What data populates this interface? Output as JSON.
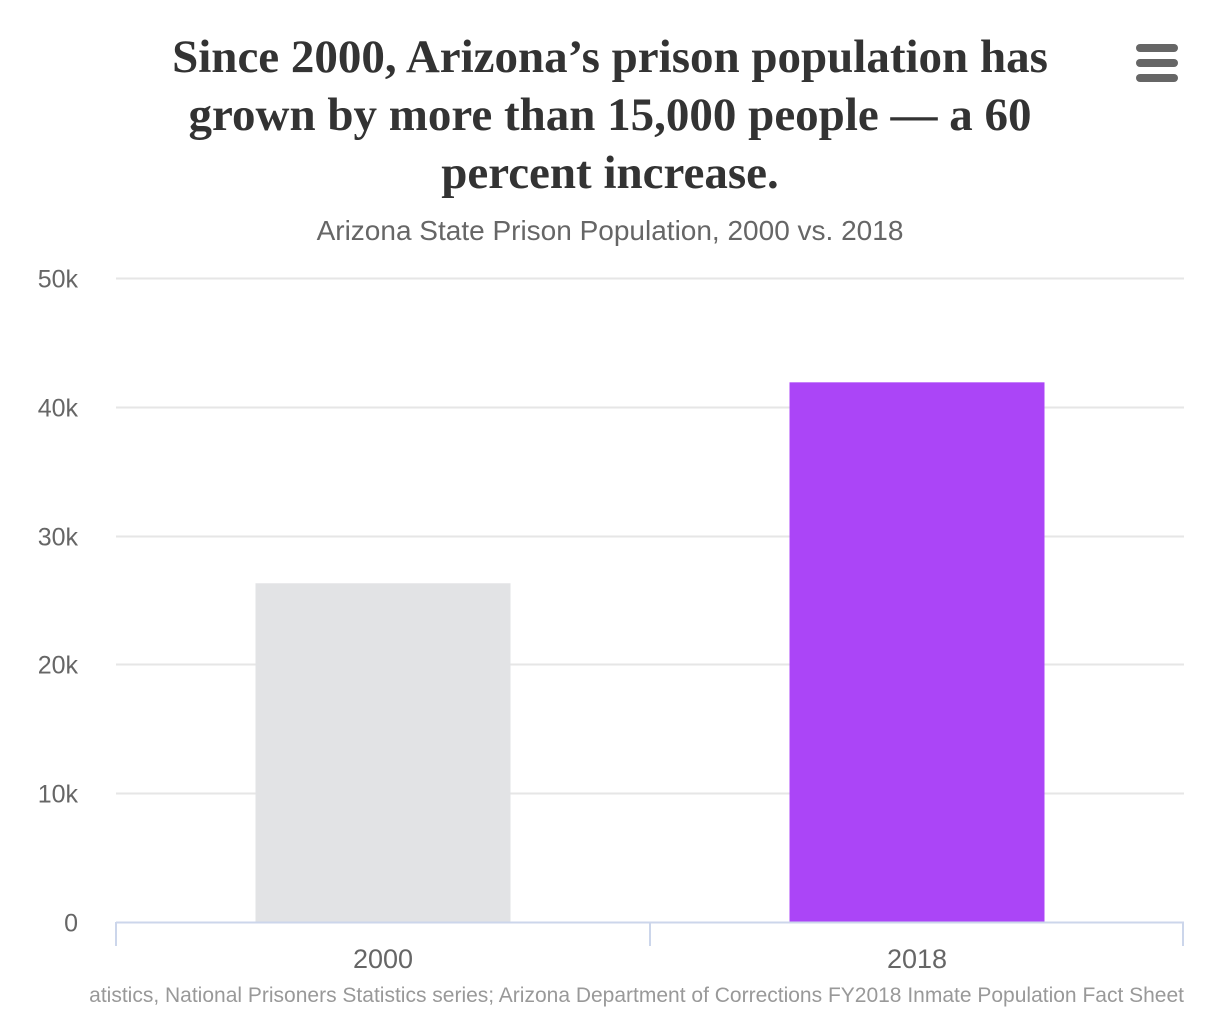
{
  "chart_data": {
    "type": "bar",
    "title": "Since 2000, Arizona’s prison population has grown by more than 15,000 people — a 60 percent increase.",
    "subtitle": "Arizona State Prison Population, 2000 vs. 2018",
    "categories": [
      "2000",
      "2018"
    ],
    "values": [
      26300,
      41900
    ],
    "bar_colors": [
      "#e2e3e5",
      "#ab45f7"
    ],
    "ylim": [
      0,
      50000
    ],
    "yticks": [
      0,
      10000,
      20000,
      30000,
      40000,
      50000
    ],
    "ytick_labels": [
      "0",
      "10k",
      "20k",
      "30k",
      "40k",
      "50k"
    ],
    "xlabel": "",
    "ylabel": "",
    "grid": true,
    "legend": "none",
    "credits": "atistics, National Prisoners Statistics series; Arizona Department of Corrections FY2018 Inmate Population Fact Sheet"
  },
  "menu": {
    "icon": "hamburger-menu-icon"
  },
  "colors": {
    "title": "#333333",
    "subtitle": "#666666",
    "axis_labels": "#666666",
    "gridline": "#e6e6e6",
    "axis_line": "#ccd6eb",
    "credits": "#999999"
  }
}
